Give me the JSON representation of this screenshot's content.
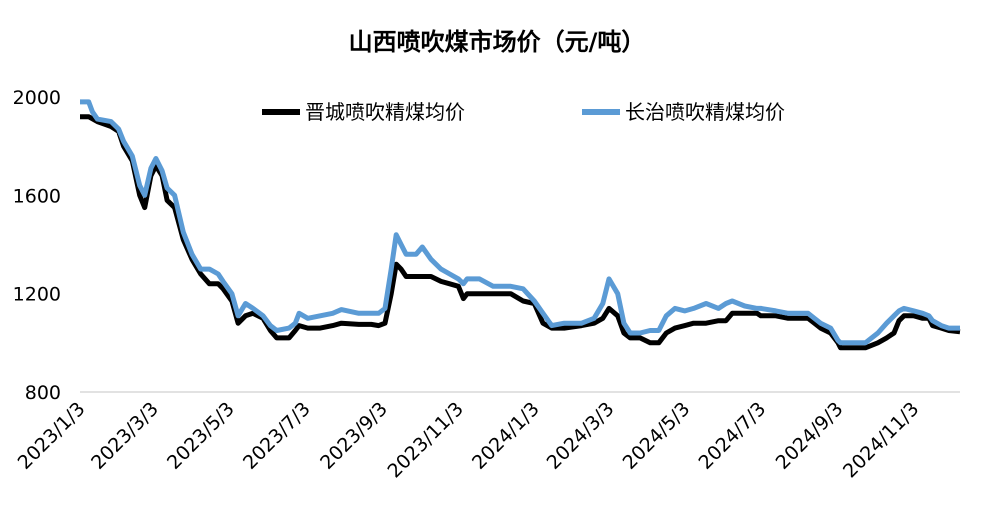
{
  "chart_data": {
    "type": "line",
    "title": "山西喷吹煤市场价（元/吨）",
    "xlabel": "",
    "ylabel": "",
    "ylim": [
      800,
      2000
    ],
    "yticks": [
      "800",
      "1200",
      "1600",
      "2000"
    ],
    "xlim": [
      "2023-01-03",
      "2024-12-10"
    ],
    "xtick_labels": [
      "2023/1/3",
      "2023/3/3",
      "2023/5/3",
      "2023/7/3",
      "2023/9/3",
      "2023/11/3",
      "2024/1/3",
      "2024/3/3",
      "2024/5/3",
      "2024/7/3",
      "2024/9/3",
      "2024/11/3"
    ],
    "xtick_dates": [
      "2023-01-03",
      "2023-03-03",
      "2023-05-03",
      "2023-07-03",
      "2023-09-03",
      "2023-11-03",
      "2024-01-03",
      "2024-03-03",
      "2024-05-03",
      "2024-07-03",
      "2024-09-03",
      "2024-11-03"
    ],
    "legend_position": "top",
    "grid": false,
    "series": [
      {
        "name": "晋城喷吹精煤均价",
        "color": "#000000",
        "points": [
          [
            "2023-01-03",
            1920
          ],
          [
            "2023-01-10",
            1920
          ],
          [
            "2023-01-17",
            1900
          ],
          [
            "2023-01-28",
            1880
          ],
          [
            "2023-02-03",
            1860
          ],
          [
            "2023-02-07",
            1800
          ],
          [
            "2023-02-14",
            1740
          ],
          [
            "2023-02-20",
            1600
          ],
          [
            "2023-02-24",
            1550
          ],
          [
            "2023-03-01",
            1680
          ],
          [
            "2023-03-05",
            1720
          ],
          [
            "2023-03-10",
            1680
          ],
          [
            "2023-03-14",
            1580
          ],
          [
            "2023-03-20",
            1550
          ],
          [
            "2023-03-27",
            1420
          ],
          [
            "2023-04-03",
            1340
          ],
          [
            "2023-04-10",
            1280
          ],
          [
            "2023-04-17",
            1240
          ],
          [
            "2023-04-24",
            1240
          ],
          [
            "2023-04-28",
            1220
          ],
          [
            "2023-05-05",
            1170
          ],
          [
            "2023-05-10",
            1080
          ],
          [
            "2023-05-16",
            1110
          ],
          [
            "2023-05-22",
            1120
          ],
          [
            "2023-05-30",
            1100
          ],
          [
            "2023-06-05",
            1050
          ],
          [
            "2023-06-10",
            1020
          ],
          [
            "2023-06-20",
            1020
          ],
          [
            "2023-06-25",
            1050
          ],
          [
            "2023-06-28",
            1070
          ],
          [
            "2023-07-05",
            1060
          ],
          [
            "2023-07-15",
            1060
          ],
          [
            "2023-07-25",
            1070
          ],
          [
            "2023-08-01",
            1080
          ],
          [
            "2023-08-15",
            1075
          ],
          [
            "2023-08-25",
            1075
          ],
          [
            "2023-08-31",
            1070
          ],
          [
            "2023-09-05",
            1080
          ],
          [
            "2023-09-10",
            1200
          ],
          [
            "2023-09-14",
            1320
          ],
          [
            "2023-09-18",
            1300
          ],
          [
            "2023-09-22",
            1270
          ],
          [
            "2023-09-30",
            1270
          ],
          [
            "2023-10-05",
            1270
          ],
          [
            "2023-10-12",
            1270
          ],
          [
            "2023-10-20",
            1250
          ],
          [
            "2023-10-27",
            1240
          ],
          [
            "2023-11-03",
            1230
          ],
          [
            "2023-11-07",
            1180
          ],
          [
            "2023-11-10",
            1200
          ],
          [
            "2023-11-20",
            1200
          ],
          [
            "2023-12-01",
            1200
          ],
          [
            "2023-12-15",
            1200
          ],
          [
            "2023-12-25",
            1170
          ],
          [
            "2024-01-03",
            1160
          ],
          [
            "2024-01-10",
            1080
          ],
          [
            "2024-01-17",
            1060
          ],
          [
            "2024-01-27",
            1060
          ],
          [
            "2024-02-10",
            1070
          ],
          [
            "2024-02-20",
            1080
          ],
          [
            "2024-02-27",
            1100
          ],
          [
            "2024-03-03",
            1140
          ],
          [
            "2024-03-10",
            1110
          ],
          [
            "2024-03-15",
            1040
          ],
          [
            "2024-03-20",
            1020
          ],
          [
            "2024-03-28",
            1020
          ],
          [
            "2024-04-05",
            1000
          ],
          [
            "2024-04-12",
            1000
          ],
          [
            "2024-04-18",
            1040
          ],
          [
            "2024-04-25",
            1060
          ],
          [
            "2024-05-03",
            1070
          ],
          [
            "2024-05-10",
            1080
          ],
          [
            "2024-05-20",
            1080
          ],
          [
            "2024-05-30",
            1090
          ],
          [
            "2024-06-05",
            1090
          ],
          [
            "2024-06-10",
            1120
          ],
          [
            "2024-06-20",
            1120
          ],
          [
            "2024-06-30",
            1120
          ],
          [
            "2024-07-03",
            1110
          ],
          [
            "2024-07-15",
            1110
          ],
          [
            "2024-07-25",
            1100
          ],
          [
            "2024-08-01",
            1100
          ],
          [
            "2024-08-10",
            1100
          ],
          [
            "2024-08-15",
            1080
          ],
          [
            "2024-08-20",
            1060
          ],
          [
            "2024-08-28",
            1040
          ],
          [
            "2024-09-03",
            1000
          ],
          [
            "2024-09-05",
            980
          ],
          [
            "2024-09-25",
            980
          ],
          [
            "2024-10-05",
            1000
          ],
          [
            "2024-10-12",
            1020
          ],
          [
            "2024-10-18",
            1040
          ],
          [
            "2024-10-22",
            1090
          ],
          [
            "2024-10-26",
            1110
          ],
          [
            "2024-11-03",
            1110
          ],
          [
            "2024-11-10",
            1100
          ],
          [
            "2024-11-15",
            1100
          ],
          [
            "2024-11-18",
            1070
          ],
          [
            "2024-11-25",
            1060
          ],
          [
            "2024-12-01",
            1050
          ],
          [
            "2024-12-10",
            1045
          ]
        ]
      },
      {
        "name": "长治喷吹精煤均价",
        "color": "#5B9BD5",
        "points": [
          [
            "2023-01-03",
            1980
          ],
          [
            "2023-01-10",
            1980
          ],
          [
            "2023-01-13",
            1940
          ],
          [
            "2023-01-17",
            1910
          ],
          [
            "2023-01-28",
            1900
          ],
          [
            "2023-02-03",
            1870
          ],
          [
            "2023-02-07",
            1820
          ],
          [
            "2023-02-14",
            1760
          ],
          [
            "2023-02-20",
            1640
          ],
          [
            "2023-02-24",
            1600
          ],
          [
            "2023-03-01",
            1710
          ],
          [
            "2023-03-05",
            1750
          ],
          [
            "2023-03-10",
            1700
          ],
          [
            "2023-03-14",
            1630
          ],
          [
            "2023-03-20",
            1600
          ],
          [
            "2023-03-27",
            1450
          ],
          [
            "2023-04-03",
            1360
          ],
          [
            "2023-04-10",
            1300
          ],
          [
            "2023-04-17",
            1300
          ],
          [
            "2023-04-24",
            1280
          ],
          [
            "2023-04-28",
            1250
          ],
          [
            "2023-05-05",
            1200
          ],
          [
            "2023-05-10",
            1110
          ],
          [
            "2023-05-16",
            1160
          ],
          [
            "2023-05-22",
            1140
          ],
          [
            "2023-05-30",
            1110
          ],
          [
            "2023-06-05",
            1070
          ],
          [
            "2023-06-10",
            1050
          ],
          [
            "2023-06-20",
            1060
          ],
          [
            "2023-06-25",
            1080
          ],
          [
            "2023-06-28",
            1120
          ],
          [
            "2023-07-05",
            1100
          ],
          [
            "2023-07-15",
            1110
          ],
          [
            "2023-07-25",
            1120
          ],
          [
            "2023-08-01",
            1135
          ],
          [
            "2023-08-15",
            1120
          ],
          [
            "2023-08-25",
            1120
          ],
          [
            "2023-08-31",
            1120
          ],
          [
            "2023-09-05",
            1140
          ],
          [
            "2023-09-10",
            1300
          ],
          [
            "2023-09-14",
            1440
          ],
          [
            "2023-09-18",
            1400
          ],
          [
            "2023-09-22",
            1360
          ],
          [
            "2023-09-30",
            1360
          ],
          [
            "2023-10-05",
            1390
          ],
          [
            "2023-10-12",
            1340
          ],
          [
            "2023-10-20",
            1300
          ],
          [
            "2023-10-27",
            1280
          ],
          [
            "2023-11-03",
            1260
          ],
          [
            "2023-11-07",
            1240
          ],
          [
            "2023-11-10",
            1260
          ],
          [
            "2023-11-20",
            1260
          ],
          [
            "2023-12-01",
            1230
          ],
          [
            "2023-12-15",
            1230
          ],
          [
            "2023-12-25",
            1220
          ],
          [
            "2024-01-03",
            1170
          ],
          [
            "2024-01-10",
            1120
          ],
          [
            "2024-01-17",
            1070
          ],
          [
            "2024-01-27",
            1080
          ],
          [
            "2024-02-10",
            1080
          ],
          [
            "2024-02-20",
            1100
          ],
          [
            "2024-02-27",
            1160
          ],
          [
            "2024-03-03",
            1260
          ],
          [
            "2024-03-10",
            1200
          ],
          [
            "2024-03-15",
            1080
          ],
          [
            "2024-03-20",
            1040
          ],
          [
            "2024-03-28",
            1040
          ],
          [
            "2024-04-05",
            1050
          ],
          [
            "2024-04-12",
            1050
          ],
          [
            "2024-04-18",
            1110
          ],
          [
            "2024-04-25",
            1140
          ],
          [
            "2024-05-03",
            1130
          ],
          [
            "2024-05-10",
            1140
          ],
          [
            "2024-05-20",
            1160
          ],
          [
            "2024-05-30",
            1140
          ],
          [
            "2024-06-05",
            1160
          ],
          [
            "2024-06-10",
            1170
          ],
          [
            "2024-06-20",
            1150
          ],
          [
            "2024-06-30",
            1140
          ],
          [
            "2024-07-03",
            1140
          ],
          [
            "2024-07-15",
            1130
          ],
          [
            "2024-07-25",
            1120
          ],
          [
            "2024-08-01",
            1120
          ],
          [
            "2024-08-10",
            1120
          ],
          [
            "2024-08-15",
            1100
          ],
          [
            "2024-08-20",
            1080
          ],
          [
            "2024-08-28",
            1060
          ],
          [
            "2024-09-03",
            1010
          ],
          [
            "2024-09-05",
            1000
          ],
          [
            "2024-09-25",
            1000
          ],
          [
            "2024-10-05",
            1040
          ],
          [
            "2024-10-12",
            1080
          ],
          [
            "2024-10-18",
            1110
          ],
          [
            "2024-10-22",
            1130
          ],
          [
            "2024-10-26",
            1140
          ],
          [
            "2024-11-03",
            1130
          ],
          [
            "2024-11-10",
            1120
          ],
          [
            "2024-11-15",
            1110
          ],
          [
            "2024-11-18",
            1090
          ],
          [
            "2024-11-25",
            1070
          ],
          [
            "2024-12-01",
            1060
          ],
          [
            "2024-12-10",
            1060
          ]
        ]
      }
    ]
  }
}
